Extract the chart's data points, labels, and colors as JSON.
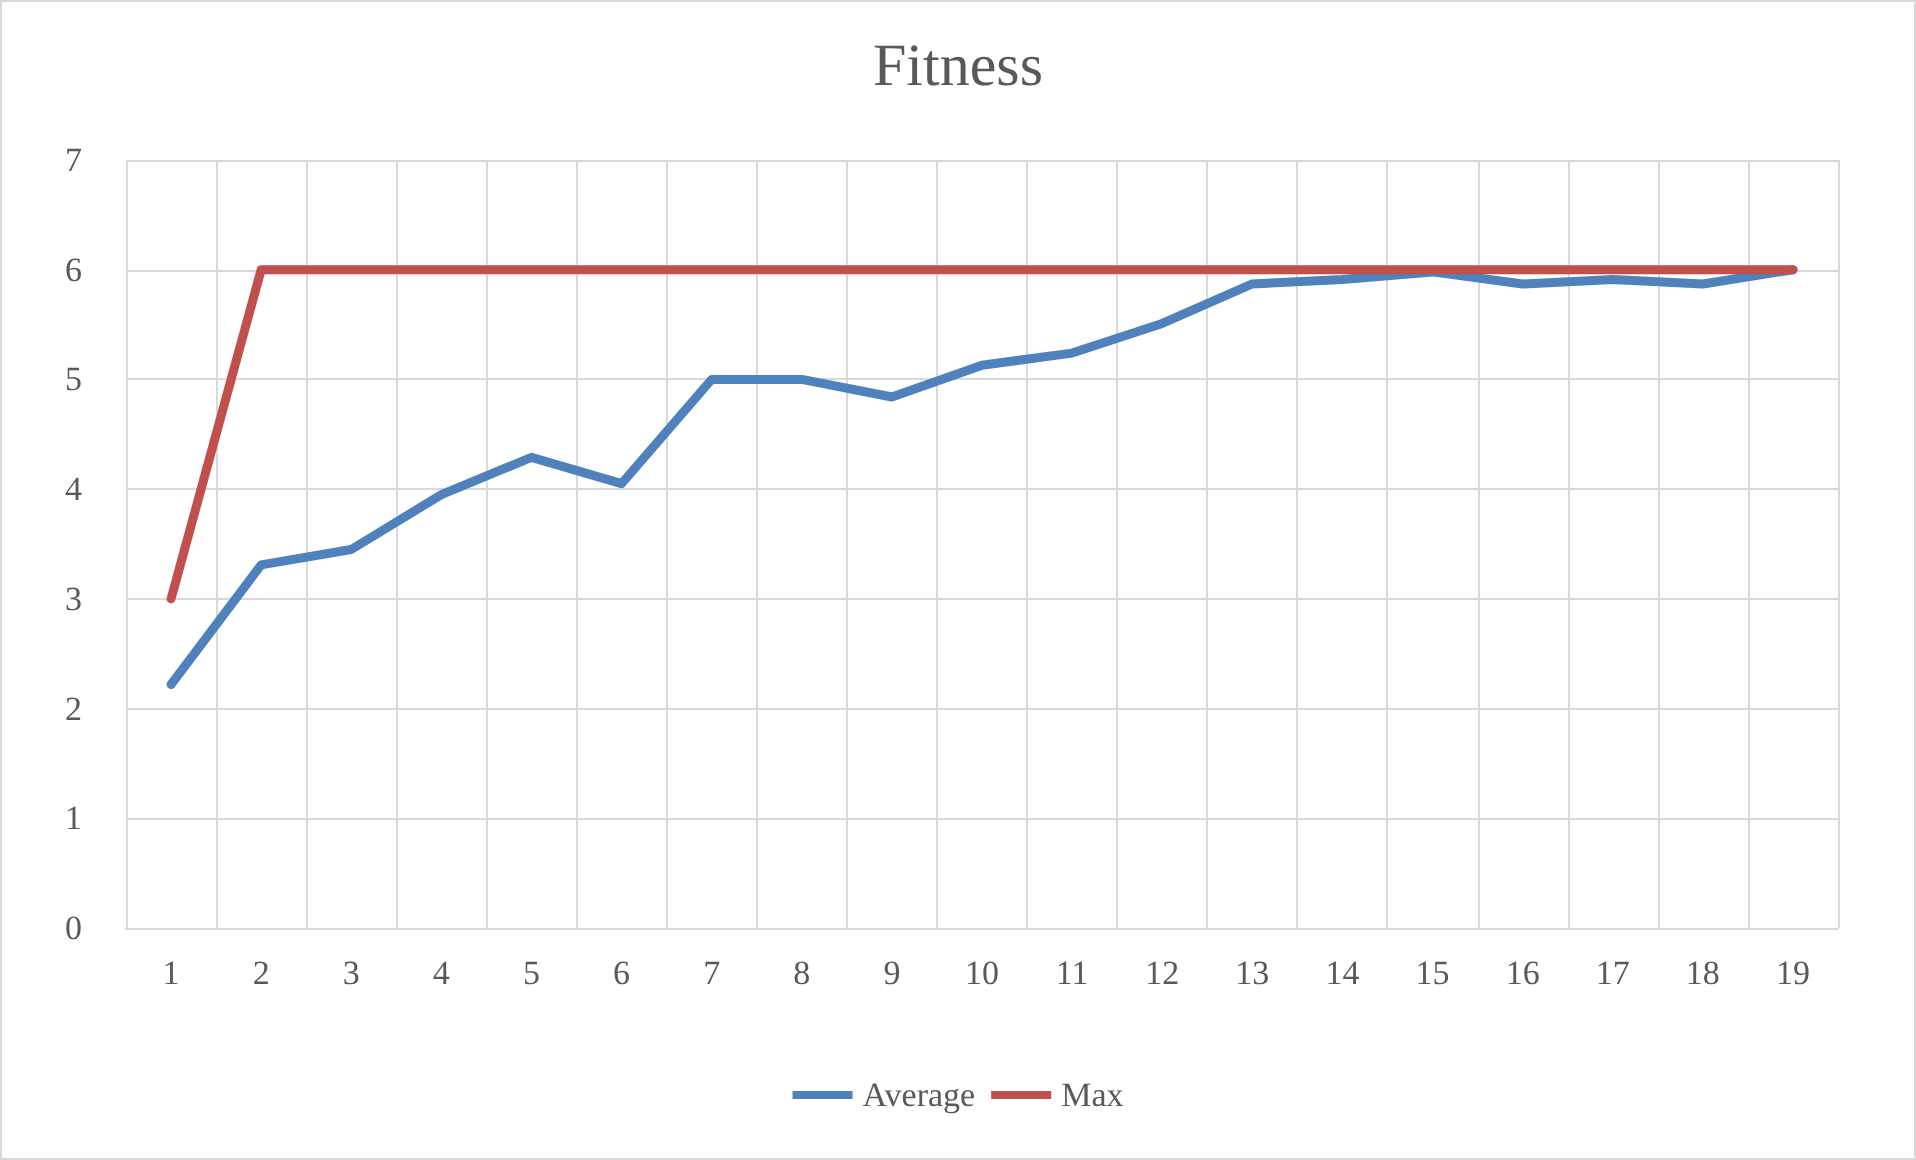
{
  "chart_data": {
    "type": "line",
    "title": "Fitness",
    "categories": [
      "1",
      "2",
      "3",
      "4",
      "5",
      "6",
      "7",
      "8",
      "9",
      "10",
      "11",
      "12",
      "13",
      "14",
      "15",
      "16",
      "17",
      "18",
      "19"
    ],
    "series": [
      {
        "name": "Average",
        "color": "#4f81bd",
        "values": [
          2.22,
          3.31,
          3.45,
          3.95,
          4.29,
          4.05,
          5.0,
          5.0,
          4.84,
          5.13,
          5.24,
          5.51,
          5.87,
          5.91,
          5.98,
          5.87,
          5.91,
          5.87,
          6.0
        ]
      },
      {
        "name": "Max",
        "color": "#c0504d",
        "values": [
          3,
          6,
          6,
          6,
          6,
          6,
          6,
          6,
          6,
          6,
          6,
          6,
          6,
          6,
          6,
          6,
          6,
          6,
          6
        ]
      }
    ],
    "ylim": [
      0,
      7
    ],
    "yticks": [
      0,
      1,
      2,
      3,
      4,
      5,
      6,
      7
    ],
    "grid": true,
    "legend": "bottom",
    "marker": "none",
    "line_style": "solid"
  }
}
